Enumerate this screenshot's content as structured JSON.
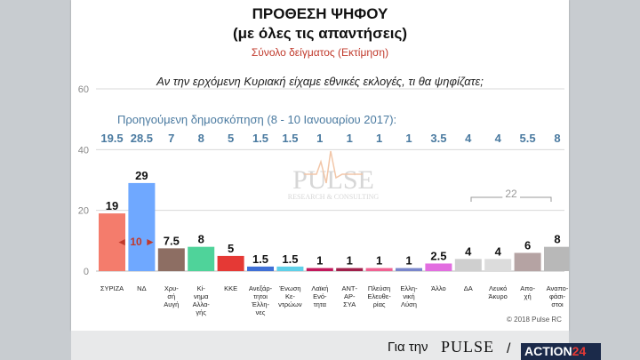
{
  "header": {
    "title": "ΠΡΟΘΕΣΗ ΨΗΦΟΥ",
    "subtitle": "(με όλες τις απαντήσεις)",
    "sample": "Σύνολο δείγματος  (Εκτίμηση)",
    "question": "Αν την ερχόμενη Κυριακή είχαμε εθνικές εκλογές, τι θα ψηφίζατε;"
  },
  "previous": {
    "label": "Προηγούμενη δημοσκόπηση (8 - 10 Ιανουαρίου 2017):",
    "values": [
      "19.5",
      "28.5",
      "7",
      "8",
      "5",
      "1.5",
      "1.5",
      "1",
      "1",
      "1",
      "1",
      "3.5",
      "4",
      "4",
      "5.5",
      "8"
    ]
  },
  "watermark": {
    "main": "PULSE",
    "sub": "RESEARCH & CONSULTING"
  },
  "annotations": {
    "gap": "◄ 10 ►",
    "bracket": "22"
  },
  "footer": {
    "copyright": "© 2018 Pulse RC",
    "prefix": "Για την",
    "pulse": "PULSE",
    "action_main": "ACTION",
    "action_num": "24"
  },
  "colors": {
    "grid": "#d8d8d8",
    "axis_text": "#888888",
    "prev_text": "#4a7aa0",
    "gap_arrow": "#c0392b",
    "bracket": "#999999"
  },
  "chart_data": {
    "type": "bar",
    "ylim": [
      0,
      60
    ],
    "yticks": [
      0,
      20,
      40,
      60
    ],
    "grid": true,
    "categories": [
      [
        "ΣΥΡΙΖΑ"
      ],
      [
        "ΝΔ"
      ],
      [
        "Χρυ-",
        "σή",
        "Αυγή"
      ],
      [
        "Κί-",
        "νημα",
        "Αλλα-",
        "γής"
      ],
      [
        "ΚΚΕ"
      ],
      [
        "Ανεξάρ-",
        "τητοι",
        "Έλλη-",
        "νες"
      ],
      [
        "Ένωση",
        "Κε-",
        "ντρώων"
      ],
      [
        "Λαϊκή",
        "Ενό-",
        "τητα"
      ],
      [
        "ΑΝΤ-",
        "ΑΡ-",
        "ΣΥΑ"
      ],
      [
        "Πλεύση",
        "Ελευθε-",
        "ρίας"
      ],
      [
        "Ελλη-",
        "νική",
        "Λύση"
      ],
      [
        "Άλλο"
      ],
      [
        "ΔΑ"
      ],
      [
        "Λευκό",
        "Άκυρο"
      ],
      [
        "Απο-",
        "χή"
      ],
      [
        "Αναπο-",
        "φάσι-",
        "στοι"
      ]
    ],
    "values": [
      19,
      29,
      7.5,
      8,
      5,
      1.5,
      1.5,
      1,
      1,
      1,
      1,
      2.5,
      4,
      4,
      6,
      8
    ],
    "value_labels": [
      "19",
      "29",
      "7.5",
      "8",
      "5",
      "1.5",
      "1.5",
      "1",
      "1",
      "1",
      "1",
      "2.5",
      "4",
      "4",
      "6",
      "8"
    ],
    "bar_colors": [
      "#f47c6c",
      "#6fa8ff",
      "#8d6e63",
      "#4fd39a",
      "#e53935",
      "#3f6fd6",
      "#5fd0e8",
      "#c2185b",
      "#a01f4a",
      "#f06292",
      "#7986cb",
      "#e26ee0",
      "#cfcfcf",
      "#dcdcdc",
      "#b5a3a3",
      "#b8b8b8"
    ]
  }
}
